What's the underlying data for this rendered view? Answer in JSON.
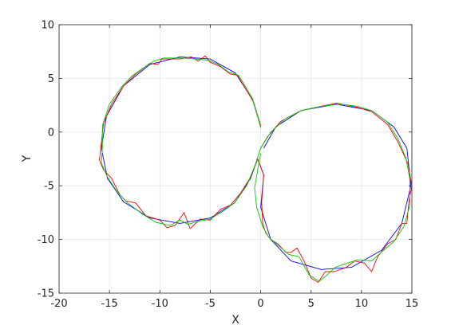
{
  "chart_data": {
    "type": "line",
    "title": "",
    "xlabel": "X",
    "ylabel": "Y",
    "xlim": [
      -20,
      15
    ],
    "ylim": [
      -15,
      10
    ],
    "xticks": [
      -20,
      -15,
      -10,
      -5,
      0,
      5,
      10,
      15
    ],
    "yticks": [
      -15,
      -10,
      -5,
      0,
      5,
      10
    ],
    "xtick_labels": [
      "-20",
      "-15",
      "-10",
      "-5",
      "0",
      "5",
      "10",
      "15"
    ],
    "ytick_labels": [
      "-15",
      "-10",
      "-5",
      "0",
      "5",
      "10"
    ],
    "grid": true,
    "legend": "none",
    "series": [
      {
        "color": "#0000ff",
        "points": [
          [
            0.0,
            0.5
          ],
          [
            -0.8,
            3.0
          ],
          [
            -2.5,
            5.5
          ],
          [
            -5.0,
            6.8
          ],
          [
            -8.0,
            7.0
          ],
          [
            -11.0,
            6.3
          ],
          [
            -13.6,
            4.3
          ],
          [
            -15.3,
            1.5
          ],
          [
            -15.8,
            -1.5
          ],
          [
            -15.2,
            -4.3
          ],
          [
            -13.6,
            -6.5
          ],
          [
            -11.0,
            -8.0
          ],
          [
            -8.0,
            -8.5
          ],
          [
            -5.0,
            -8.0
          ],
          [
            -2.6,
            -6.6
          ],
          [
            -1.0,
            -4.3
          ],
          [
            -0.3,
            -2.5
          ],
          [
            0.3,
            -4.0
          ],
          [
            0.0,
            -7.0
          ],
          [
            1.0,
            -10.0
          ],
          [
            3.0,
            -12.0
          ],
          [
            6.0,
            -12.8
          ],
          [
            9.0,
            -12.6
          ],
          [
            12.0,
            -11.0
          ],
          [
            14.0,
            -8.5
          ],
          [
            14.9,
            -5.0
          ],
          [
            14.5,
            -1.5
          ],
          [
            13.2,
            0.5
          ],
          [
            11.0,
            2.0
          ],
          [
            7.5,
            2.6
          ],
          [
            4.0,
            2.0
          ],
          [
            1.5,
            0.5
          ],
          [
            0.3,
            -1.5
          ]
        ]
      },
      {
        "color": "#ff0000",
        "points": [
          [
            0.0,
            0.6
          ],
          [
            -0.7,
            2.8
          ],
          [
            -2.3,
            5.3
          ],
          [
            -3.0,
            5.4
          ],
          [
            -4.0,
            6.1
          ],
          [
            -5.0,
            6.5
          ],
          [
            -5.5,
            7.1
          ],
          [
            -6.2,
            6.6
          ],
          [
            -6.9,
            7.0
          ],
          [
            -8.0,
            6.8
          ],
          [
            -9.8,
            6.8
          ],
          [
            -10.2,
            6.3
          ],
          [
            -11.0,
            6.4
          ],
          [
            -12.4,
            5.4
          ],
          [
            -13.6,
            4.3
          ],
          [
            -14.8,
            2.6
          ],
          [
            -15.6,
            0.8
          ],
          [
            -15.8,
            -1.0
          ],
          [
            -16.0,
            -2.6
          ],
          [
            -15.6,
            -3.5
          ],
          [
            -14.8,
            -4.3
          ],
          [
            -14.0,
            -5.8
          ],
          [
            -13.4,
            -6.4
          ],
          [
            -12.4,
            -6.6
          ],
          [
            -11.4,
            -7.8
          ],
          [
            -10.0,
            -8.2
          ],
          [
            -9.3,
            -8.9
          ],
          [
            -8.5,
            -8.7
          ],
          [
            -7.6,
            -7.5
          ],
          [
            -7.0,
            -9.0
          ],
          [
            -6.0,
            -8.1
          ],
          [
            -5.0,
            -8.2
          ],
          [
            -4.0,
            -7.2
          ],
          [
            -3.0,
            -6.8
          ],
          [
            -2.0,
            -5.7
          ],
          [
            -1.0,
            -4.2
          ],
          [
            -0.3,
            -2.5
          ],
          [
            0.3,
            -4.0
          ],
          [
            0.1,
            -6.5
          ],
          [
            0.2,
            -8.5
          ],
          [
            0.5,
            -9.4
          ],
          [
            1.0,
            -10.0
          ],
          [
            1.7,
            -10.4
          ],
          [
            2.5,
            -11.2
          ],
          [
            3.0,
            -11.2
          ],
          [
            3.6,
            -10.8
          ],
          [
            4.3,
            -12.0
          ],
          [
            5.0,
            -13.6
          ],
          [
            5.7,
            -14.0
          ],
          [
            6.4,
            -13.0
          ],
          [
            7.3,
            -13.0
          ],
          [
            8.5,
            -12.6
          ],
          [
            9.3,
            -12.0
          ],
          [
            10.3,
            -12.2
          ],
          [
            11.0,
            -13.0
          ],
          [
            11.6,
            -11.6
          ],
          [
            12.6,
            -10.4
          ],
          [
            13.4,
            -10.0
          ],
          [
            14.0,
            -8.5
          ],
          [
            14.5,
            -8.5
          ],
          [
            14.7,
            -6.5
          ],
          [
            15.0,
            -5.0
          ],
          [
            14.6,
            -2.9
          ],
          [
            13.6,
            -0.9
          ],
          [
            12.6,
            0.7
          ],
          [
            11.0,
            1.9
          ],
          [
            9.6,
            2.3
          ],
          [
            8.6,
            2.5
          ],
          [
            7.5,
            2.7
          ],
          [
            6.0,
            2.4
          ],
          [
            4.0,
            2.0
          ],
          [
            2.0,
            1.0
          ],
          [
            0.7,
            -0.4
          ],
          [
            0.0,
            -1.5
          ]
        ]
      },
      {
        "color": "#00cc00",
        "points": [
          [
            0.0,
            0.4
          ],
          [
            -0.8,
            3.1
          ],
          [
            -2.2,
            5.3
          ],
          [
            -3.2,
            5.6
          ],
          [
            -4.2,
            6.3
          ],
          [
            -5.2,
            6.7
          ],
          [
            -6.5,
            6.8
          ],
          [
            -8.0,
            6.9
          ],
          [
            -9.6,
            6.9
          ],
          [
            -10.6,
            6.6
          ],
          [
            -11.6,
            6.0
          ],
          [
            -12.8,
            5.2
          ],
          [
            -13.8,
            4.2
          ],
          [
            -15.0,
            2.6
          ],
          [
            -15.7,
            0.6
          ],
          [
            -15.7,
            -1.4
          ],
          [
            -15.8,
            -2.9
          ],
          [
            -15.2,
            -4.2
          ],
          [
            -14.2,
            -5.6
          ],
          [
            -13.2,
            -6.6
          ],
          [
            -11.8,
            -7.6
          ],
          [
            -10.4,
            -8.4
          ],
          [
            -9.0,
            -8.7
          ],
          [
            -8.0,
            -8.2
          ],
          [
            -7.2,
            -8.6
          ],
          [
            -6.2,
            -8.3
          ],
          [
            -5.0,
            -8.1
          ],
          [
            -3.8,
            -7.4
          ],
          [
            -2.6,
            -6.6
          ],
          [
            -1.4,
            -5.0
          ],
          [
            -0.6,
            -3.2
          ],
          [
            0.0,
            -1.5
          ],
          [
            1.0,
            0.0
          ],
          [
            2.4,
            1.2
          ],
          [
            4.0,
            2.0
          ],
          [
            6.0,
            2.4
          ],
          [
            8.0,
            2.6
          ],
          [
            9.6,
            2.4
          ],
          [
            11.0,
            2.0
          ],
          [
            12.6,
            0.9
          ],
          [
            13.6,
            -0.6
          ],
          [
            14.4,
            -2.4
          ],
          [
            14.8,
            -4.4
          ],
          [
            14.8,
            -6.8
          ],
          [
            14.2,
            -8.8
          ],
          [
            13.2,
            -10.2
          ],
          [
            12.2,
            -11.0
          ],
          [
            11.0,
            -12.0
          ],
          [
            9.6,
            -11.9
          ],
          [
            8.6,
            -12.2
          ],
          [
            7.4,
            -12.6
          ],
          [
            6.6,
            -13.3
          ],
          [
            5.8,
            -13.9
          ],
          [
            4.8,
            -13.3
          ],
          [
            3.8,
            -11.6
          ],
          [
            2.8,
            -11.4
          ],
          [
            1.8,
            -10.6
          ],
          [
            0.8,
            -9.8
          ],
          [
            0.2,
            -8.8
          ],
          [
            -0.4,
            -7.0
          ],
          [
            -0.6,
            -5.2
          ],
          [
            -0.2,
            -3.0
          ],
          [
            0.0,
            -2.0
          ]
        ]
      }
    ]
  }
}
